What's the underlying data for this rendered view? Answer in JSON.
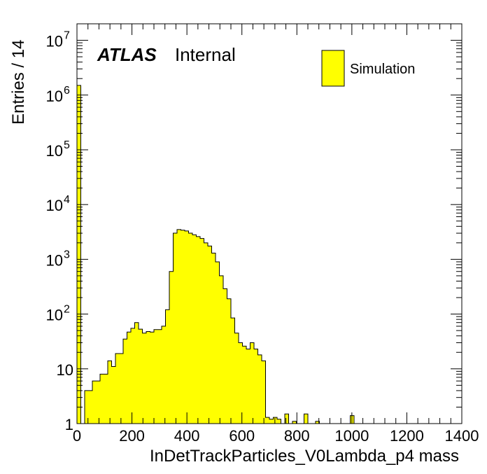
{
  "chart_data": {
    "type": "bar",
    "title": "",
    "xlabel": "InDetTrackParticles_V0Lambda_p4 mass",
    "ylabel": "Entries / 14",
    "xlim": [
      0,
      1400
    ],
    "ylim": [
      1,
      20000000
    ],
    "y_scale": "log",
    "bin_width": 14,
    "x_ticks": [
      0,
      200,
      400,
      600,
      800,
      1000,
      1200,
      1400
    ],
    "x_tick_labels": [
      "0",
      "200",
      "400",
      "600",
      "800",
      "1000",
      "1200",
      "1400"
    ],
    "y_tick_labels": [
      {
        "value": 1,
        "base": "1",
        "exp": ""
      },
      {
        "value": 10,
        "base": "10",
        "exp": ""
      },
      {
        "value": 100,
        "base": "10",
        "exp": "2"
      },
      {
        "value": 1000,
        "base": "10",
        "exp": "3"
      },
      {
        "value": 10000,
        "base": "10",
        "exp": "4"
      },
      {
        "value": 100000,
        "base": "10",
        "exp": "5"
      },
      {
        "value": 1000000,
        "base": "10",
        "exp": "6"
      },
      {
        "value": 10000000,
        "base": "10",
        "exp": "7"
      }
    ],
    "fill_color": "#ffff00",
    "line_color": "#000000",
    "series": [
      {
        "name": "Simulation",
        "bins": [
          [
            0,
            1500000
          ],
          [
            14,
            1
          ],
          [
            28,
            4
          ],
          [
            42,
            4
          ],
          [
            56,
            6
          ],
          [
            70,
            6
          ],
          [
            84,
            8
          ],
          [
            98,
            8
          ],
          [
            112,
            14
          ],
          [
            126,
            11
          ],
          [
            140,
            19
          ],
          [
            154,
            19
          ],
          [
            168,
            35
          ],
          [
            182,
            47
          ],
          [
            196,
            55
          ],
          [
            210,
            70
          ],
          [
            224,
            53
          ],
          [
            238,
            45
          ],
          [
            252,
            48
          ],
          [
            266,
            47
          ],
          [
            280,
            52
          ],
          [
            294,
            52
          ],
          [
            308,
            60
          ],
          [
            322,
            120
          ],
          [
            336,
            600
          ],
          [
            350,
            3000
          ],
          [
            364,
            3500
          ],
          [
            378,
            3400
          ],
          [
            392,
            3300
          ],
          [
            406,
            3000
          ],
          [
            420,
            2800
          ],
          [
            434,
            2600
          ],
          [
            448,
            2400
          ],
          [
            462,
            2000
          ],
          [
            476,
            1750
          ],
          [
            490,
            1300
          ],
          [
            504,
            900
          ],
          [
            518,
            500
          ],
          [
            532,
            290
          ],
          [
            546,
            190
          ],
          [
            560,
            85
          ],
          [
            574,
            45
          ],
          [
            588,
            30
          ],
          [
            602,
            26
          ],
          [
            616,
            23
          ],
          [
            630,
            30
          ],
          [
            644,
            23
          ],
          [
            658,
            18
          ],
          [
            672,
            14
          ],
          [
            686,
            1.3
          ],
          [
            700,
            1.2
          ],
          [
            714,
            1.3
          ],
          [
            728,
            1.2
          ],
          [
            742,
            0
          ],
          [
            756,
            1.5
          ],
          [
            770,
            0
          ],
          [
            784,
            1.1
          ],
          [
            798,
            0
          ],
          [
            812,
            0
          ],
          [
            826,
            1.5
          ],
          [
            840,
            0
          ],
          [
            854,
            0
          ],
          [
            868,
            1.1
          ],
          [
            882,
            0
          ],
          [
            896,
            0
          ],
          [
            910,
            0
          ],
          [
            924,
            0
          ],
          [
            938,
            0
          ],
          [
            952,
            0
          ],
          [
            966,
            0
          ],
          [
            980,
            0
          ],
          [
            994,
            1.4
          ]
        ]
      }
    ],
    "legend": {
      "position": "top-right",
      "entries": [
        "Simulation"
      ]
    },
    "annotation": {
      "brand": "ATLAS",
      "status": "Internal"
    },
    "grid": false
  }
}
